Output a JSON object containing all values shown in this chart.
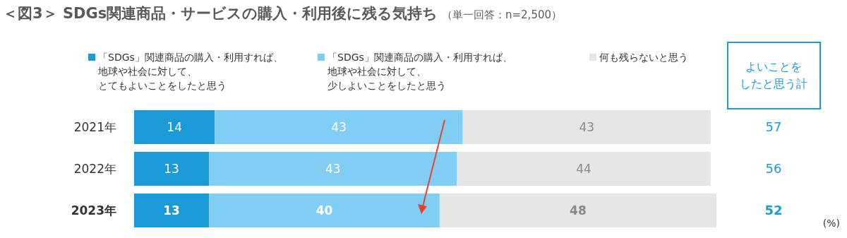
{
  "chart_data": {
    "type": "bar",
    "orientation": "horizontal",
    "stacked": true,
    "title": "＜図3＞ SDGs関連商品・サービスの購入・利用後に残る気持ち",
    "subtitle": "（単一回答：n=2,500）",
    "categories": [
      "2021年",
      "2022年",
      "2023年"
    ],
    "series": [
      {
        "name": "「SDGs」関連商品の購入・利用すれば、地球や社会に対して、とてもよいことをしたと思う",
        "color": "#1b9ad8",
        "values": [
          14,
          13,
          13
        ]
      },
      {
        "name": "「SDGs」関連商品の購入・利用すれば、地球や社会に対して、少しよいことをしたと思う",
        "color": "#80cef3",
        "values": [
          43,
          43,
          40
        ]
      },
      {
        "name": "何も残らないと思う",
        "color": "#e6e6e6",
        "values": [
          43,
          44,
          48
        ]
      }
    ],
    "xlim": [
      0,
      101
    ],
    "tick_labels": "y",
    "data_labels": true,
    "legend": "top",
    "annotations": [
      "よいことをしたと思う計",
      "57",
      "56",
      "52",
      "(%)"
    ]
  }
}
